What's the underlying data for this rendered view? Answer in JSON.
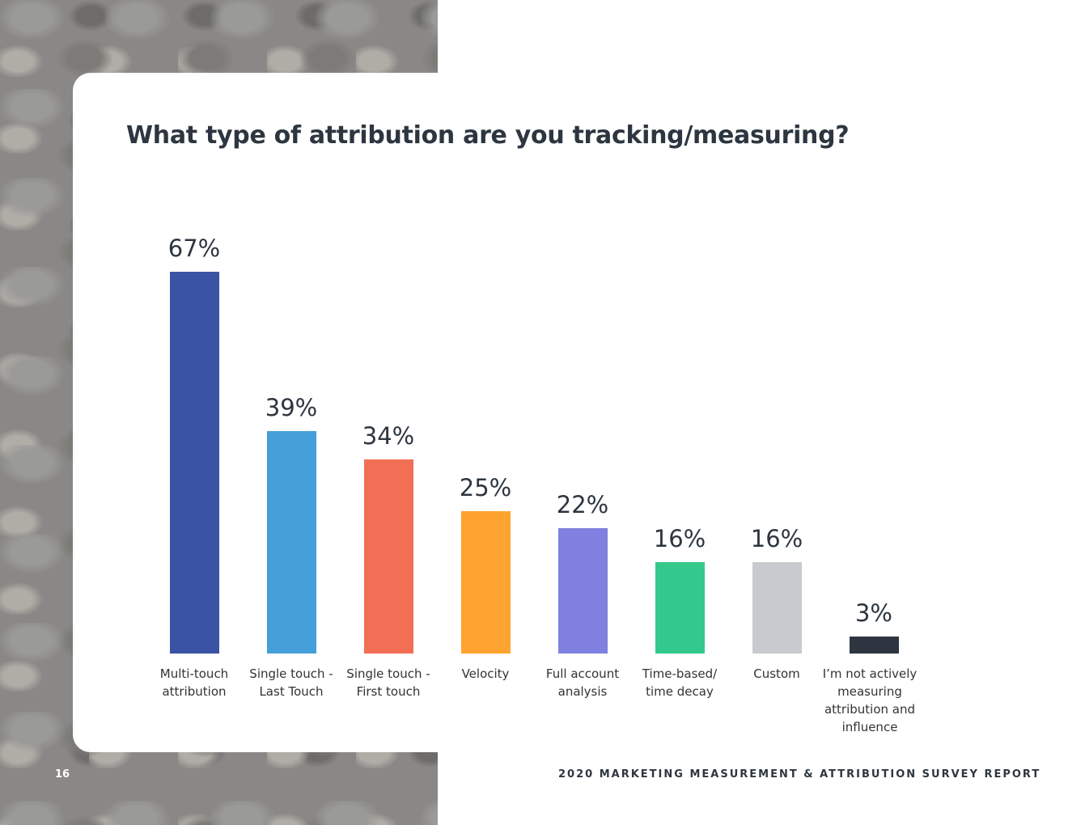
{
  "page_number": "16",
  "footer": "2020 MARKETING MEASUREMENT & ATTRIBUTION SURVEY REPORT",
  "chart_data": {
    "type": "bar",
    "title": "What type of attribution are you tracking/measuring?",
    "categories": [
      "Multi-touch attribution",
      "Single touch - Last Touch",
      "Single touch - First touch",
      "Velocity",
      "Full account analysis",
      "Time-based/ time decay",
      "Custom",
      "I’m not actively measuring attribution and influence"
    ],
    "values": [
      67,
      39,
      34,
      25,
      22,
      16,
      16,
      3
    ],
    "value_labels": [
      "67%",
      "39%",
      "34%",
      "25%",
      "22%",
      "16%",
      "16%",
      "3%"
    ],
    "colors": [
      "#3a53a4",
      "#459fd9",
      "#f26f55",
      "#fea32f",
      "#8080e0",
      "#34c98c",
      "#c7cace",
      "#2d3640"
    ]
  }
}
